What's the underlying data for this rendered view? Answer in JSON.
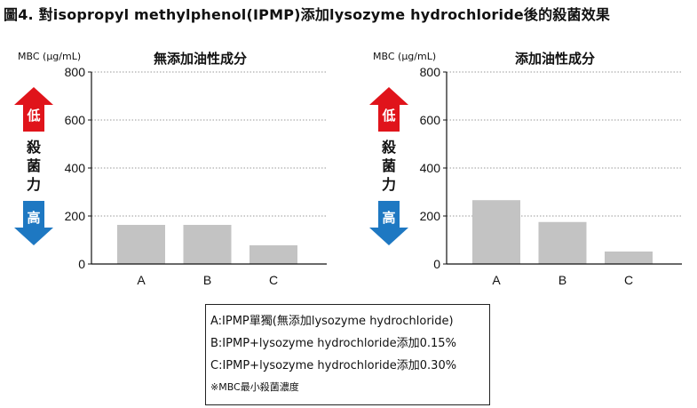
{
  "figure_title": "圖4. 對isopropyl methylphenol(IPMP)添加lysozyme hydrochloride後的殺菌效果",
  "indicator": {
    "low_label": "低",
    "high_label": "高",
    "vertical_label": [
      "殺",
      "菌",
      "力"
    ],
    "colors": {
      "low": "#e0141b",
      "high": "#1e78c2"
    }
  },
  "colors": {
    "bar": "#c3c3c3",
    "grid": "#9a9a9a",
    "axis": "#111111"
  },
  "chart_data": [
    {
      "type": "bar",
      "title": "無添加油性成分",
      "ylabel": "MBC (μg/mL)",
      "xlabel": "",
      "categories": [
        "A",
        "B",
        "C"
      ],
      "values": [
        163,
        163,
        78
      ],
      "ylim": [
        0,
        800
      ],
      "yticks": [
        0,
        200,
        400,
        600,
        800
      ],
      "grid": true
    },
    {
      "type": "bar",
      "title": "添加油性成分",
      "ylabel": "MBC (μg/mL)",
      "xlabel": "",
      "categories": [
        "A",
        "B",
        "C"
      ],
      "values": [
        266,
        175,
        52
      ],
      "ylim": [
        0,
        800
      ],
      "yticks": [
        0,
        200,
        400,
        600,
        800
      ],
      "grid": true
    }
  ],
  "legend": {
    "lines": [
      "A:IPMP單獨(無添加lysozyme hydrochloride)",
      "B:IPMP+lysozyme hydrochloride添加0.15%",
      "C:IPMP+lysozyme hydrochloride添加0.30%"
    ],
    "note": "※MBC最小殺菌濃度"
  }
}
